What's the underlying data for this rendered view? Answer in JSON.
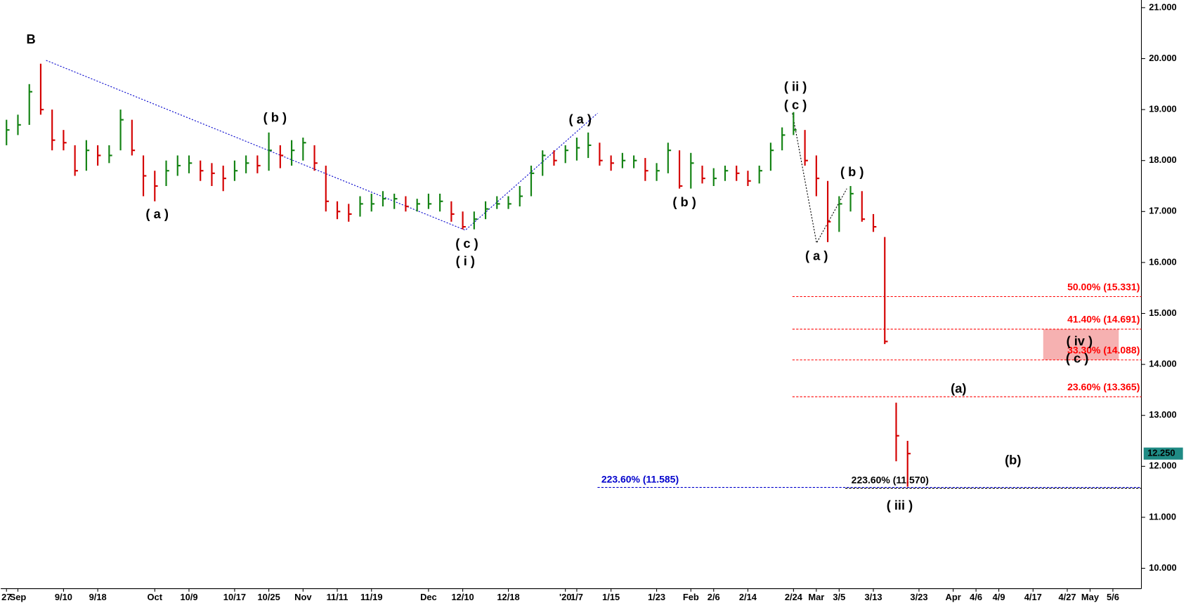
{
  "chart_data": {
    "type": "ohlc",
    "categories": [
      "27",
      "Sep",
      null,
      null,
      null,
      "9/10",
      null,
      null,
      "9/18",
      null,
      null,
      null,
      null,
      "Oct",
      null,
      null,
      "10/9",
      null,
      null,
      null,
      "10/17",
      null,
      null,
      "10/25",
      null,
      null,
      "Nov",
      null,
      null,
      "11/11",
      null,
      null,
      "11/19",
      null,
      null,
      null,
      null,
      "Dec",
      null,
      null,
      "12/10",
      null,
      null,
      null,
      "12/18",
      null,
      null,
      null,
      null,
      "'20",
      "1/7",
      null,
      null,
      "1/15",
      null,
      null,
      null,
      "1/23",
      null,
      null,
      "Feb",
      null,
      "2/6",
      null,
      null,
      "2/14",
      null,
      null,
      null,
      "2/24",
      null,
      "Mar",
      null,
      "3/5",
      null,
      null,
      "3/13",
      null,
      null,
      null,
      "3/23",
      null,
      null,
      "Apr",
      null,
      "4/6",
      null,
      "4/9",
      null,
      null,
      "4/17",
      null,
      null,
      "4/27",
      null,
      "May",
      null,
      "5/6",
      null,
      null
    ],
    "high": [
      18.8,
      18.9,
      19.5,
      19.9,
      19.0,
      18.6,
      18.3,
      18.4,
      18.3,
      18.3,
      19.0,
      18.8,
      18.1,
      17.8,
      18.0,
      18.1,
      18.1,
      18.0,
      17.95,
      17.9,
      18.0,
      18.1,
      18.1,
      18.55,
      18.3,
      18.4,
      18.45,
      18.3,
      17.9,
      17.2,
      17.15,
      17.3,
      17.35,
      17.4,
      17.35,
      17.3,
      17.25,
      17.35,
      17.35,
      17.2,
      17.0,
      17.0,
      17.2,
      17.3,
      17.3,
      17.5,
      17.9,
      18.2,
      18.2,
      18.3,
      18.45,
      18.55,
      18.35,
      18.1,
      18.15,
      18.1,
      18.05,
      17.95,
      18.35,
      18.2,
      18.15,
      17.9,
      17.85,
      17.9,
      17.9,
      17.8,
      17.9,
      18.35,
      18.65,
      18.95,
      18.6,
      18.1,
      17.6,
      17.3,
      17.5,
      17.4,
      16.95,
      16.5,
      13.25,
      12.5,
      null,
      null,
      null,
      null,
      null,
      null,
      null,
      null,
      null,
      null,
      null,
      null,
      null,
      null,
      null,
      null,
      null,
      null,
      null,
      null
    ],
    "low": [
      18.3,
      18.5,
      18.7,
      18.9,
      18.2,
      18.2,
      17.7,
      17.8,
      17.9,
      17.95,
      18.2,
      18.1,
      17.3,
      17.2,
      17.5,
      17.7,
      17.75,
      17.6,
      17.5,
      17.4,
      17.6,
      17.75,
      17.75,
      17.8,
      17.85,
      17.9,
      18.0,
      17.8,
      17.0,
      16.85,
      16.8,
      16.9,
      17.0,
      17.1,
      17.05,
      17.0,
      17.0,
      17.05,
      17.0,
      16.8,
      16.65,
      16.65,
      16.85,
      17.05,
      17.05,
      17.1,
      17.3,
      17.7,
      17.9,
      17.95,
      18.0,
      18.05,
      17.9,
      17.8,
      17.85,
      17.85,
      17.6,
      17.6,
      17.75,
      17.45,
      17.45,
      17.55,
      17.5,
      17.6,
      17.6,
      17.5,
      17.55,
      17.8,
      18.2,
      18.5,
      17.9,
      17.3,
      16.4,
      16.6,
      17.0,
      16.8,
      16.6,
      14.4,
      12.1,
      11.6,
      null,
      null,
      null,
      null,
      null,
      null,
      null,
      null,
      null,
      null,
      null,
      null,
      null,
      null,
      null,
      null,
      null,
      null,
      null,
      null
    ],
    "close": [
      18.6,
      18.7,
      19.35,
      19.0,
      18.4,
      18.35,
      17.8,
      18.2,
      18.1,
      18.1,
      18.8,
      18.2,
      17.7,
      17.5,
      17.8,
      17.9,
      17.95,
      17.8,
      17.75,
      17.65,
      17.8,
      17.95,
      17.9,
      18.2,
      18.1,
      18.2,
      18.35,
      17.95,
      17.2,
      17.0,
      16.95,
      17.15,
      17.15,
      17.25,
      17.25,
      17.1,
      17.15,
      17.15,
      17.2,
      16.95,
      16.7,
      16.85,
      17.05,
      17.15,
      17.15,
      17.3,
      17.75,
      18.1,
      18.0,
      18.2,
      18.25,
      18.3,
      18.0,
      17.95,
      18.0,
      18.0,
      17.8,
      17.8,
      18.2,
      17.5,
      17.95,
      17.65,
      17.65,
      17.8,
      17.75,
      17.6,
      17.8,
      18.2,
      18.5,
      18.6,
      18.0,
      17.65,
      16.8,
      17.15,
      17.35,
      16.85,
      16.7,
      14.45,
      12.6,
      12.25,
      null,
      null,
      null,
      null,
      null,
      null,
      null,
      null,
      null,
      null,
      null,
      null,
      null,
      null,
      null,
      null,
      null,
      null,
      null,
      null
    ],
    "up_color": "#128212",
    "down_color": "#d40000",
    "ylim": [
      9.6,
      21.15
    ],
    "yticks": [
      {
        "value": 10,
        "label": "10.000"
      },
      {
        "value": 11,
        "label": "11.000"
      },
      {
        "value": 12,
        "label": "12.000"
      },
      {
        "value": 13,
        "label": "13.000"
      },
      {
        "value": 14,
        "label": "14.000"
      },
      {
        "value": 15,
        "label": "15.000"
      },
      {
        "value": 16,
        "label": "16.000"
      },
      {
        "value": 17,
        "label": "17.000"
      },
      {
        "value": 18,
        "label": "18.000"
      },
      {
        "value": 19,
        "label": "19.000"
      },
      {
        "value": 20,
        "label": "20.000"
      },
      {
        "value": 21,
        "label": "21.000"
      }
    ],
    "last_price": {
      "value": 12.25,
      "label": "12.250"
    },
    "hlines": [
      {
        "label": "50.00% (15.331)",
        "value": 15.331,
        "color": "#ff0000"
      },
      {
        "label": "41.40% (14.691)",
        "value": 14.691,
        "color": "#ff0000"
      },
      {
        "label": "33.30% (14.088)",
        "value": 14.088,
        "color": "#ff0000"
      },
      {
        "label": "23.60% (13.365)",
        "value": 13.365,
        "color": "#ff0000"
      },
      {
        "label": "223.60% (11.585)",
        "value": 11.585,
        "color": "#0000cc"
      },
      {
        "label": "223.60% (11.570)",
        "value": 11.57,
        "color": "#000000"
      }
    ],
    "annotations": [
      "B",
      "( a )",
      "( b )",
      "( c )",
      "( i )",
      "( a )",
      "( b )",
      "( ii )",
      "( c )",
      "( a )",
      "( b )",
      "( iv )",
      "( c )",
      "(a)",
      "(b)",
      "( iii )"
    ]
  }
}
